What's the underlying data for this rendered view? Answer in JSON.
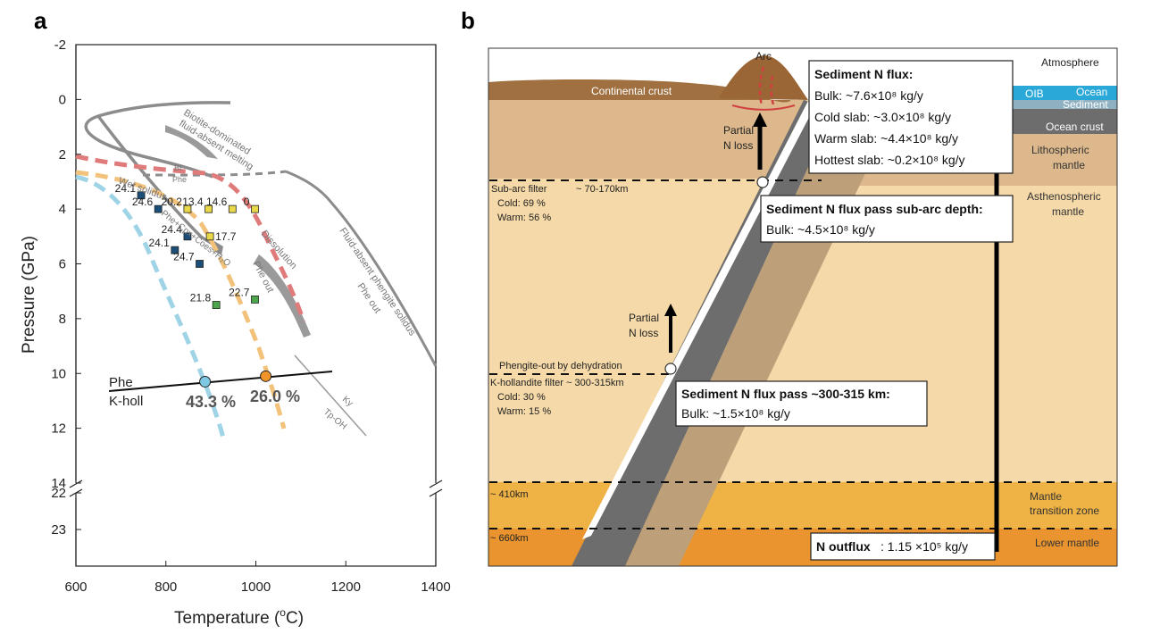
{
  "panel_a": {
    "letter": "a",
    "xlabel": "Temperature (",
    "xlabel_sup": "o",
    "xlabel_tail": "C)",
    "ylabel": "Pressure (GPa)",
    "xticks": [
      "600",
      "800",
      "1000",
      "1200",
      "1400"
    ],
    "yticks_upper": [
      "-2",
      "0",
      "2",
      "4",
      "6",
      "8",
      "10",
      "12",
      "14"
    ],
    "yticks_lower": [
      "22",
      "23"
    ],
    "labels": {
      "biotite": "Biotite-dominated",
      "biotite2": "fluid-absent melting",
      "bt": "Bt",
      "phe": "Phe",
      "wet": "Wet solidus",
      "reaction": "Phe+Cpx+Coes+H₂O",
      "dissolution": "Dissolution",
      "pheout_left": "Phe out",
      "fluid_absent": "Fluid-absent phengite solidus",
      "pheout_right": "Phe out",
      "phe_k": "Phe",
      "kholl": "K-holl",
      "pct1": "43.3 %",
      "pct2": "26.0 %",
      "ky": "Ky",
      "tpoh": "Tp-OH"
    }
  },
  "chart_data": {
    "type": "scatter",
    "xlabel": "Temperature (oC)",
    "ylabel": "Pressure (GPa)",
    "xlim": [
      600,
      1400
    ],
    "ylim": [
      -2,
      23
    ],
    "points": [
      {
        "T": 745,
        "P": 3.5,
        "label": "24.1",
        "color": "#1b4f7a"
      },
      {
        "T": 783,
        "P": 4.0,
        "label": "24.6",
        "color": "#1b4f7a"
      },
      {
        "T": 848,
        "P": 5.0,
        "label": "24.4",
        "color": "#1b4f7a"
      },
      {
        "T": 820,
        "P": 5.5,
        "label": "24.1",
        "color": "#1b4f7a"
      },
      {
        "T": 875,
        "P": 6.0,
        "label": "24.7",
        "color": "#1b4f7a"
      },
      {
        "T": 848,
        "P": 4.0,
        "label": "20.2",
        "color": "#e8d84a"
      },
      {
        "T": 895,
        "P": 4.0,
        "label": "13.4",
        "color": "#e8d84a"
      },
      {
        "T": 948,
        "P": 4.0,
        "label": "14.6",
        "color": "#e8d84a"
      },
      {
        "T": 998,
        "P": 4.0,
        "label": "0",
        "color": "#e8d84a"
      },
      {
        "T": 898,
        "P": 5.0,
        "label": "17.7",
        "color": "#e8d84a"
      },
      {
        "T": 912,
        "P": 7.5,
        "label": "21.8",
        "color": "#4ca64c"
      },
      {
        "T": 998,
        "P": 7.3,
        "label": "22.7",
        "color": "#4ca64c"
      }
    ],
    "circles": [
      {
        "T": 887,
        "P": 10.3,
        "color": "#7ec8e3"
      },
      {
        "T": 1022,
        "P": 10.1,
        "color": "#f0942a"
      }
    ]
  },
  "panel_b": {
    "letter": "b",
    "arc": "Arc",
    "atmosphere": "Atmosphere",
    "continental": "Continental crust",
    "oib": "OIB",
    "ocean": "Ocean",
    "sediment": "Sediment",
    "ocean_crust": "Ocean crust",
    "litho": "Lithospheric",
    "litho2": "mantle",
    "astheno": "Asthenospheric",
    "astheno2": "mantle",
    "mtz": "Mantle",
    "mtz2": "transition zone",
    "lower": "Lower mantle",
    "partial1a": "Partial",
    "partial1b": "N loss",
    "partial2a": "Partial",
    "partial2b": "N loss",
    "subarc": "Sub-arc filter",
    "subarc_depth": "~ 70-170km",
    "subarc_cold": "Cold: 69 %",
    "subarc_warm": "Warm: 56 %",
    "phengite_out": "Phengite-out by dehydration",
    "khollandite": "K-hollandite filter ~ 300-315km",
    "khol_cold": "Cold: 30 %",
    "khol_warm": "Warm: 15 %",
    "d410": "~ 410km",
    "d660": "~ 660km",
    "box1": {
      "title": "Sediment N flux:",
      "l1": "Bulk: ~7.6×10⁸ kg/y",
      "l2": "Cold slab: ~3.0×10⁸ kg/y",
      "l3": "Warm slab: ~4.4×10⁸ kg/y",
      "l4": "Hottest slab: ~0.2×10⁸ kg/y"
    },
    "box2": {
      "title": "Sediment N flux pass sub-arc depth:",
      "l1": "Bulk: ~4.5×10⁸ kg/y"
    },
    "box3": {
      "title": "Sediment N flux pass ~300-315 km:",
      "l1": "Bulk: ~1.5×10⁸ kg/y"
    },
    "outflux_label": "N outflux",
    "outflux_value": ": 1.15 ×10⁵ kg/y"
  },
  "colors": {
    "cold_blue": "#9fd3e6",
    "warm_orange": "#f2c27a",
    "red_dash": "#e07b7b",
    "grey_curve": "#8c8c8c",
    "continental": "#a07040",
    "mantle_light": "#f5d9a8",
    "litho": "#dcb88c",
    "mtz": "#efb244",
    "lower": "#e9942e",
    "ocean": "#2aa8d8"
  }
}
